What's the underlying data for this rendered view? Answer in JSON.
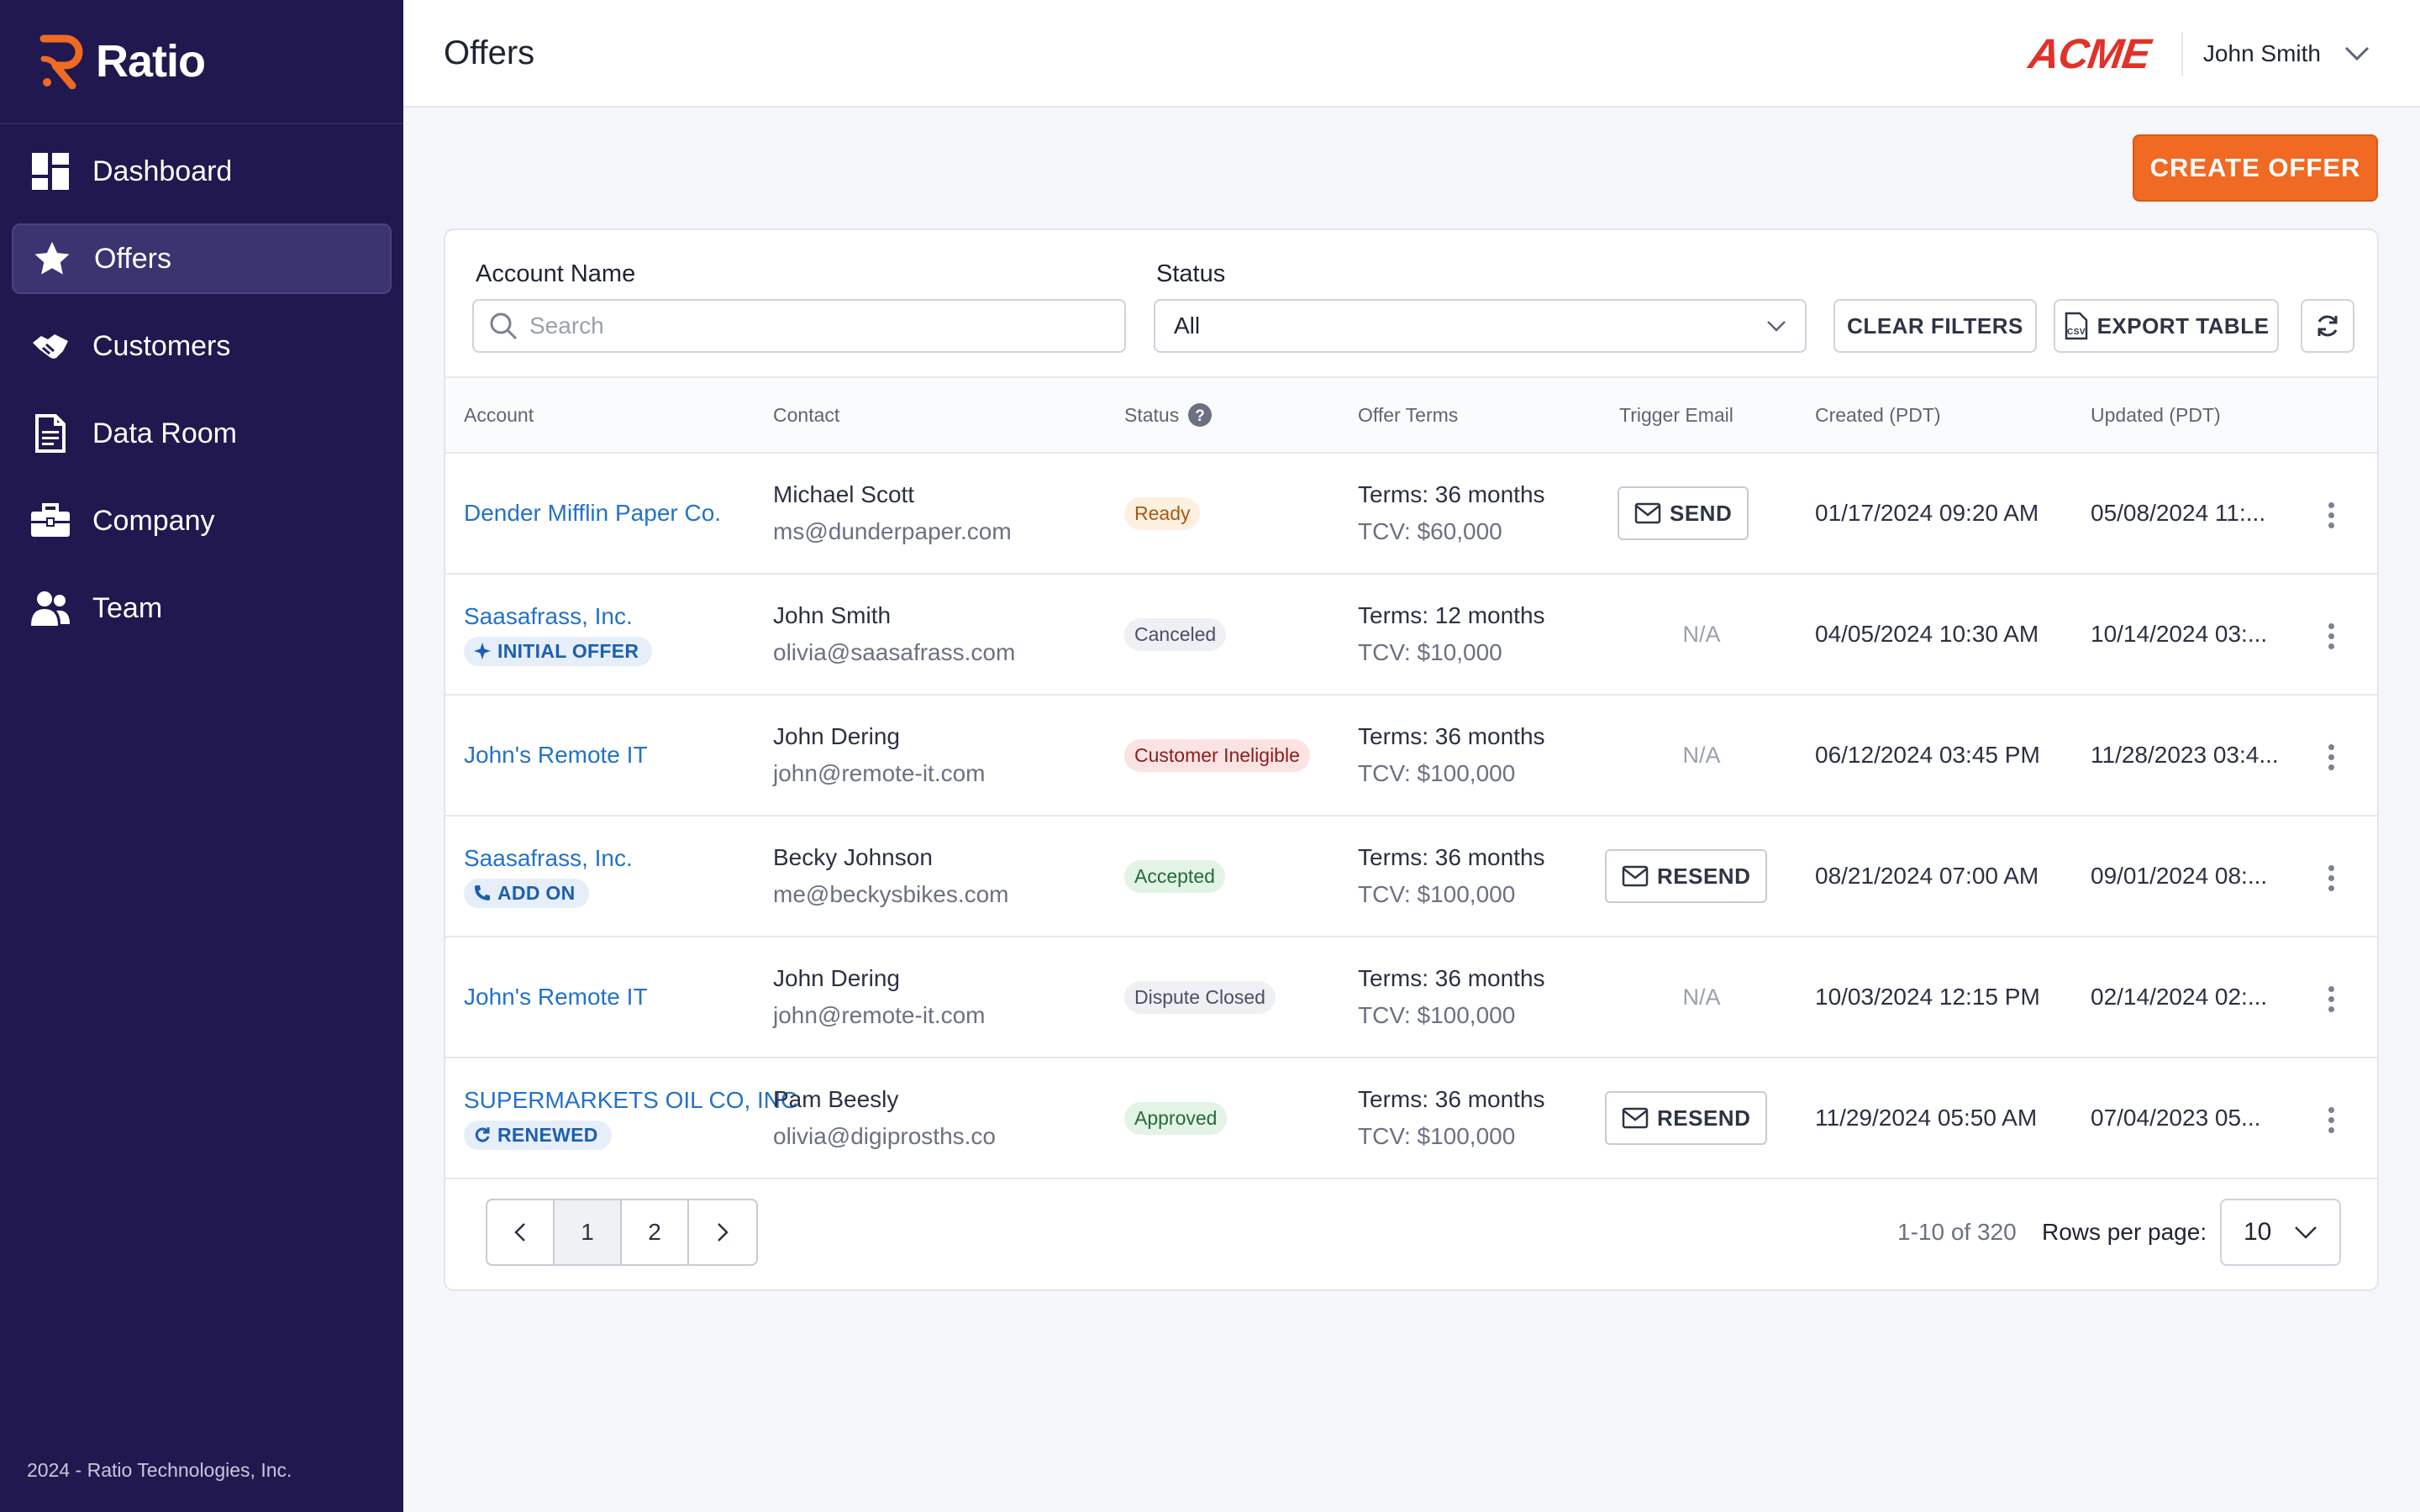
{
  "app": {
    "name": "Ratio",
    "footer": "2024 - Ratio Technologies, Inc."
  },
  "sidebar": {
    "items": [
      {
        "label": "Dashboard",
        "icon": "dashboard-icon",
        "active": false
      },
      {
        "label": "Offers",
        "icon": "star-icon",
        "active": true
      },
      {
        "label": "Customers",
        "icon": "handshake-icon",
        "active": false
      },
      {
        "label": "Data Room",
        "icon": "document-icon",
        "active": false
      },
      {
        "label": "Company",
        "icon": "briefcase-icon",
        "active": false
      },
      {
        "label": "Team",
        "icon": "team-icon",
        "active": false
      }
    ]
  },
  "header": {
    "title": "Offers",
    "brand": "ACME",
    "user": "John Smith"
  },
  "actions": {
    "create_offer": "CREATE OFFER"
  },
  "filters": {
    "account_label": "Account Name",
    "search_placeholder": "Search",
    "status_label": "Status",
    "status_value": "All",
    "clear": "CLEAR FILTERS",
    "export": "EXPORT TABLE"
  },
  "table": {
    "columns": [
      "Account",
      "Contact",
      "Status",
      "Offer Terms",
      "Trigger Email",
      "Created (PDT)",
      "Updated (PDT)"
    ],
    "rows": [
      {
        "account": "Dender Mifflin Paper Co.",
        "tag": "",
        "contact": "Michael Scott",
        "email": "ms@dunderpaper.com",
        "status": "Ready",
        "terms": "Terms: 36 months",
        "tcv": "TCV: $60,000",
        "trigger": "SEND",
        "created": "01/17/2024 09:20 AM",
        "updated": "05/08/2024 11:..."
      },
      {
        "account": "Saasafrass, Inc.",
        "tag": "INITIAL OFFER",
        "contact": "John Smith",
        "email": "olivia@saasafrass.com",
        "status": "Canceled",
        "terms": "Terms: 12 months",
        "tcv": "TCV: $10,000",
        "trigger": "N/A",
        "created": "04/05/2024 10:30 AM",
        "updated": "10/14/2024 03:..."
      },
      {
        "account": "John's Remote IT",
        "tag": "",
        "contact": "John Dering",
        "email": "john@remote-it.com",
        "status": "Customer Ineligible",
        "terms": "Terms: 36 months",
        "tcv": "TCV: $100,000",
        "trigger": "N/A",
        "created": "06/12/2024 03:45 PM",
        "updated": "11/28/2023 03:4..."
      },
      {
        "account": "Saasafrass, Inc.",
        "tag": "ADD ON",
        "contact": "Becky Johnson",
        "email": "me@beckysbikes.com",
        "status": "Accepted",
        "terms": "Terms: 36 months",
        "tcv": "TCV: $100,000",
        "trigger": "RESEND",
        "created": "08/21/2024 07:00 AM",
        "updated": "09/01/2024 08:..."
      },
      {
        "account": "John's Remote IT",
        "tag": "",
        "contact": "John Dering",
        "email": "john@remote-it.com",
        "status": "Dispute Closed",
        "terms": "Terms: 36 months",
        "tcv": "TCV: $100,000",
        "trigger": "N/A",
        "created": "10/03/2024 12:15 PM",
        "updated": "02/14/2024 02:..."
      },
      {
        "account": "SUPERMARKETS OIL CO, INC",
        "tag": "RENEWED",
        "contact": "Pam Beesly",
        "email": "olivia@digiprosths.co",
        "status": "Approved",
        "terms": "Terms: 36 months",
        "tcv": "TCV: $100,000",
        "trigger": "RESEND",
        "created": "11/29/2024 05:50 AM",
        "updated": "07/04/2023 05..."
      }
    ]
  },
  "status_colors": {
    "Ready": {
      "bg": "#fdf0df",
      "fg": "#a65a12"
    },
    "Canceled": {
      "bg": "#eef0f3",
      "fg": "#4a5062"
    },
    "Customer Ineligible": {
      "bg": "#fbe3e3",
      "fg": "#8a1d1d"
    },
    "Accepted": {
      "bg": "#e3f3e6",
      "fg": "#256a35"
    },
    "Dispute Closed": {
      "bg": "#eef0f3",
      "fg": "#4a5062"
    },
    "Approved": {
      "bg": "#e3f3e6",
      "fg": "#256a35"
    }
  },
  "pagination": {
    "pages": [
      "1",
      "2"
    ],
    "current": "1",
    "range": "1-10 of 320",
    "rows_label": "Rows per page:",
    "rows_value": "10"
  }
}
